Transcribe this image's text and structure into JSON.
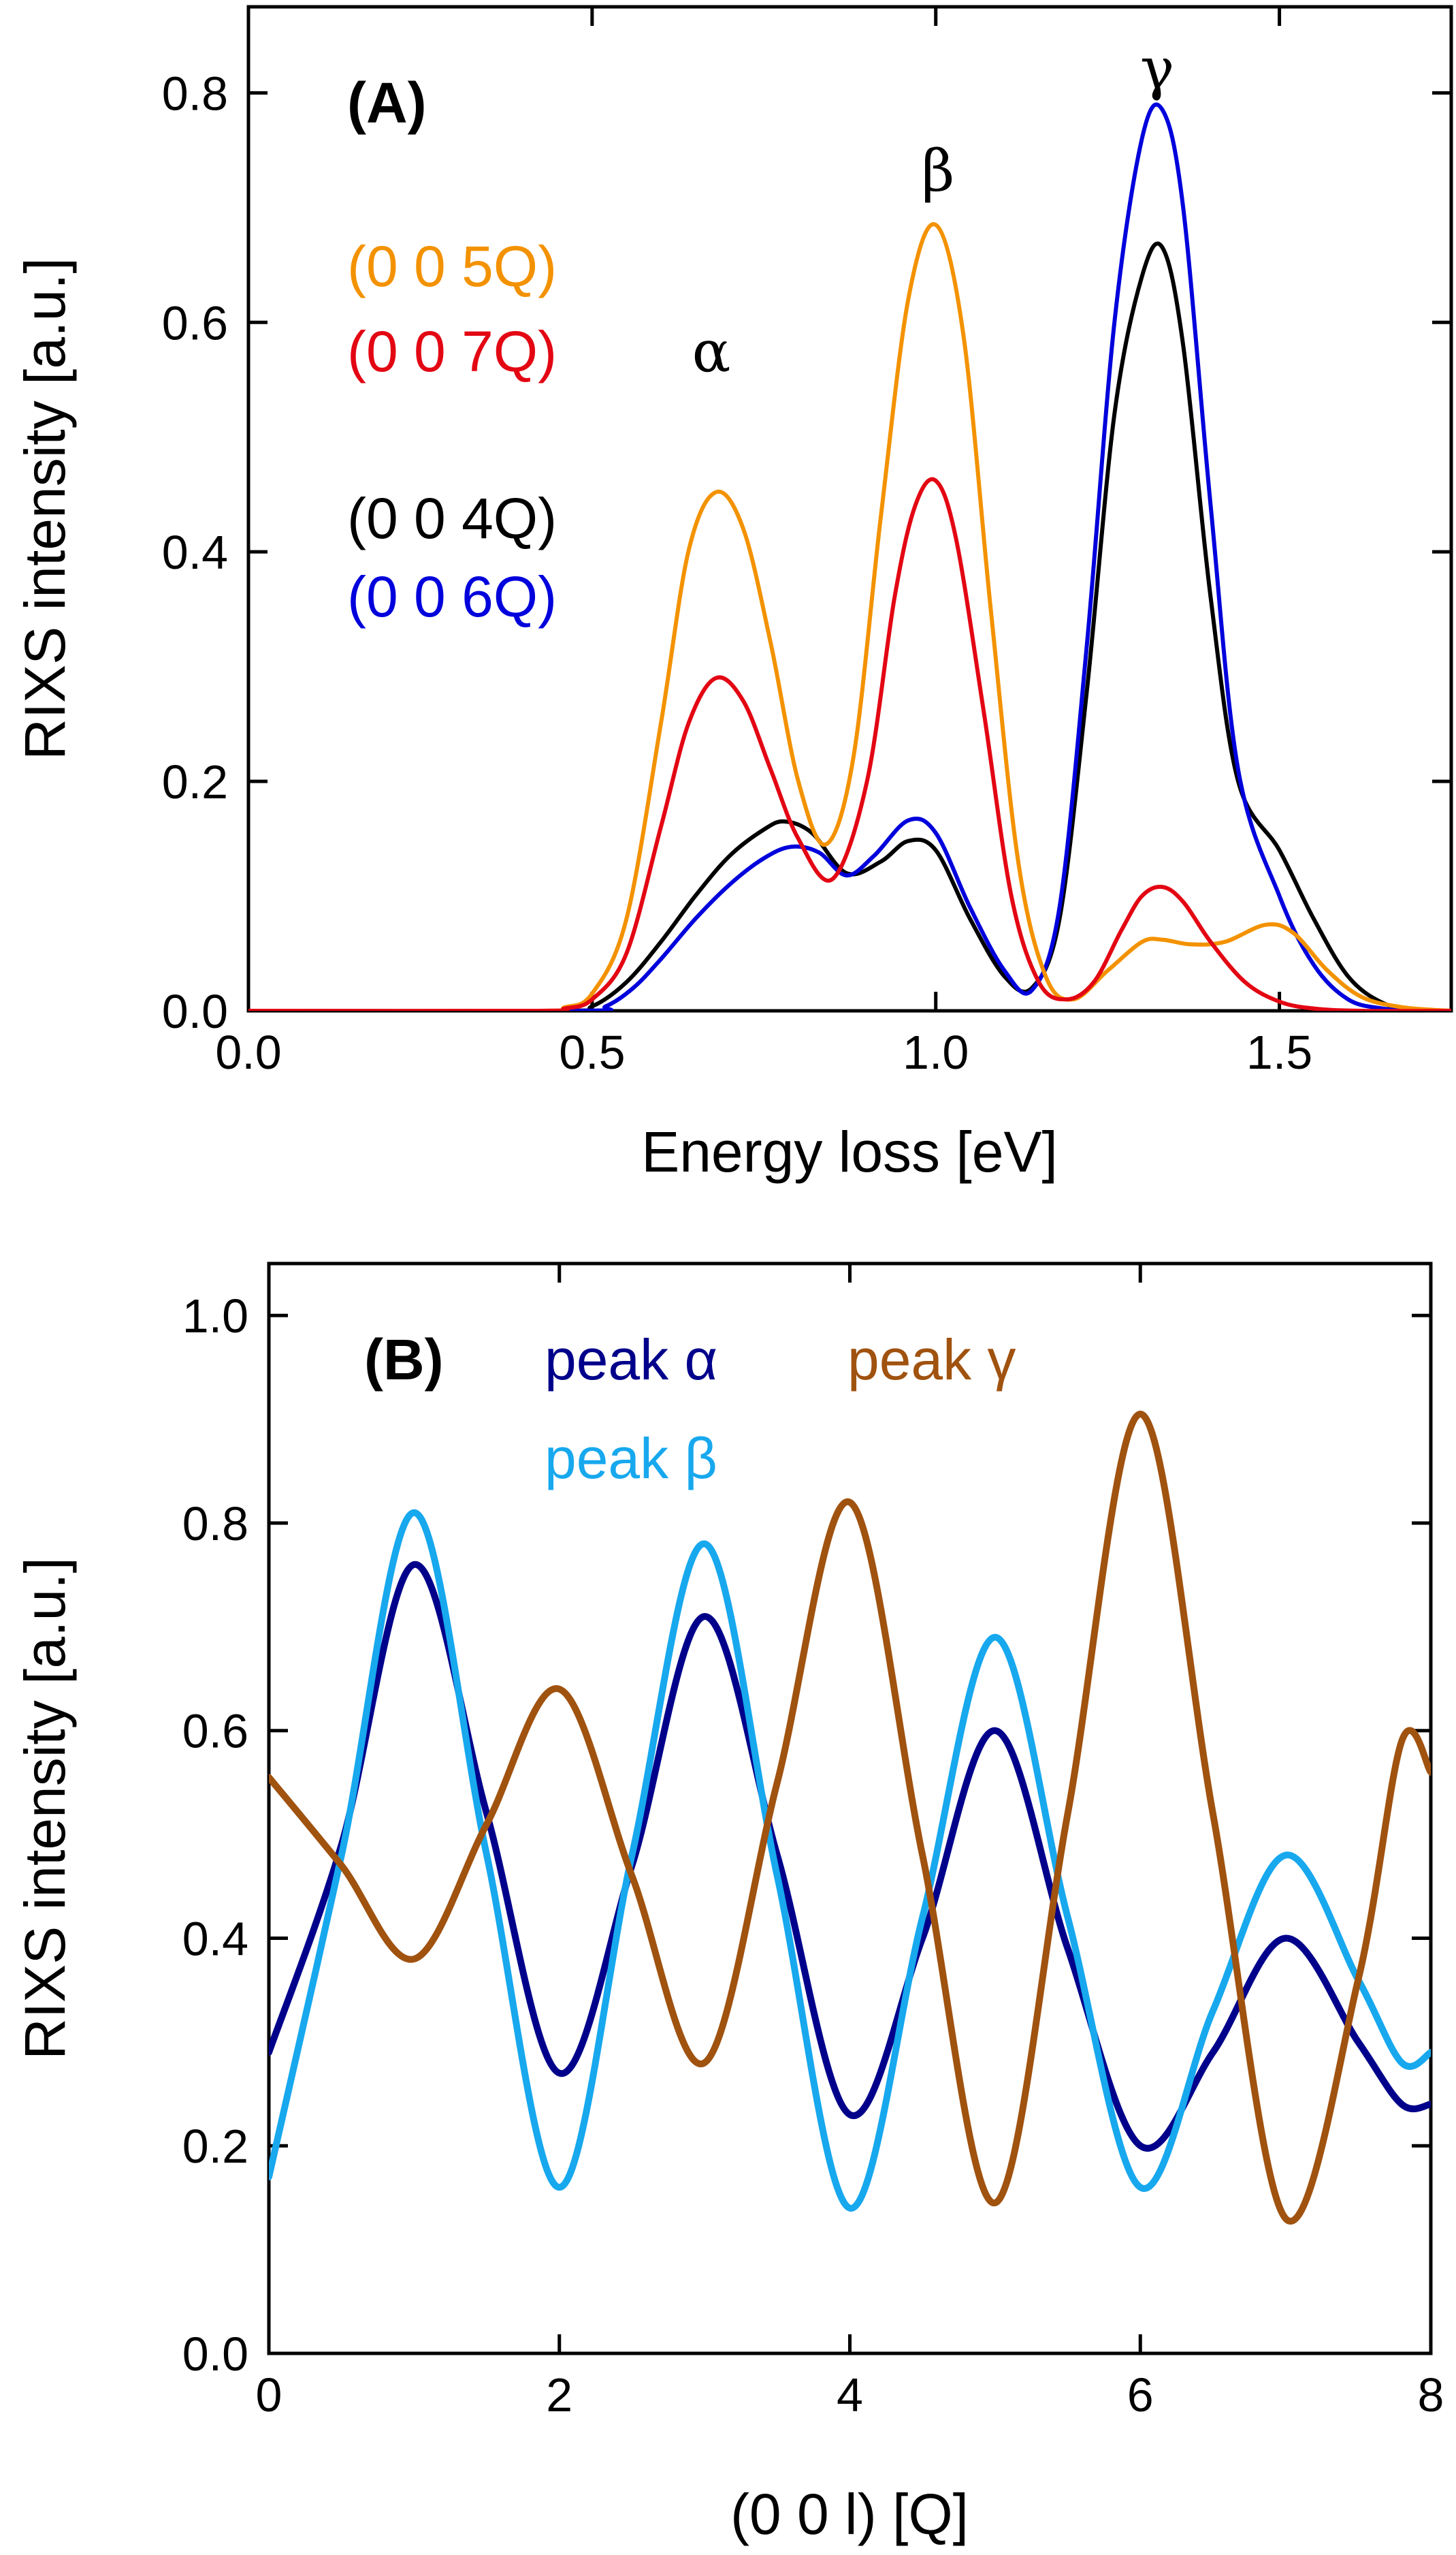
{
  "chart_data": [
    {
      "type": "line",
      "panel_label": "(A)",
      "xlabel": "Energy loss [eV]",
      "ylabel": "RIXS intensity [a.u.]",
      "xlim": [
        0.0,
        1.75
      ],
      "ylim": [
        0.0,
        0.875
      ],
      "xticks": [
        "0.0",
        "0.5",
        "1.0",
        "1.5"
      ],
      "xtick_values": [
        0.0,
        0.5,
        1.0,
        1.5
      ],
      "yticks": [
        "0.0",
        "0.2",
        "0.4",
        "0.6",
        "0.8"
      ],
      "ytick_values": [
        0.0,
        0.2,
        0.4,
        0.6,
        0.8
      ],
      "peak_labels": [
        {
          "text": "α",
          "x": 0.68,
          "y": 0.59
        },
        {
          "text": "β",
          "x": 1.0,
          "y": 0.74
        },
        {
          "text": "γ",
          "x": 1.33,
          "y": 0.84
        }
      ],
      "legend": [
        {
          "label": "(0 0 5Q)",
          "color": "#F39200"
        },
        {
          "label": "(0 0 7Q)",
          "color": "#E30613"
        },
        {
          "label": "(0 0 4Q)",
          "color": "#000000"
        },
        {
          "label": "(0 0 6Q)",
          "color": "#0000DC"
        }
      ],
      "series": [
        {
          "name": "(0 0 4Q)",
          "color": "#000000",
          "x": [
            0.0,
            0.45,
            0.5,
            0.55,
            0.6,
            0.65,
            0.7,
            0.75,
            0.78,
            0.82,
            0.87,
            0.92,
            0.96,
            1.0,
            1.05,
            1.1,
            1.14,
            1.18,
            1.22,
            1.26,
            1.3,
            1.33,
            1.36,
            1.4,
            1.44,
            1.5,
            1.55,
            1.6,
            1.65,
            1.7,
            1.75
          ],
          "y": [
            0.0,
            0.0,
            0.004,
            0.025,
            0.06,
            0.1,
            0.135,
            0.158,
            0.165,
            0.155,
            0.12,
            0.13,
            0.148,
            0.14,
            0.08,
            0.03,
            0.02,
            0.08,
            0.28,
            0.52,
            0.64,
            0.665,
            0.58,
            0.36,
            0.2,
            0.14,
            0.08,
            0.03,
            0.007,
            0.001,
            0.0
          ]
        },
        {
          "name": "(0 0 6Q)",
          "color": "#0000DC",
          "x": [
            0.0,
            0.48,
            0.52,
            0.56,
            0.6,
            0.65,
            0.7,
            0.75,
            0.79,
            0.83,
            0.87,
            0.91,
            0.96,
            1.0,
            1.05,
            1.1,
            1.14,
            1.18,
            1.22,
            1.26,
            1.3,
            1.33,
            1.36,
            1.4,
            1.44,
            1.5,
            1.55,
            1.6,
            1.65,
            1.7,
            1.75
          ],
          "y": [
            0.0,
            0.0,
            0.004,
            0.02,
            0.045,
            0.08,
            0.11,
            0.133,
            0.143,
            0.138,
            0.118,
            0.135,
            0.166,
            0.155,
            0.09,
            0.035,
            0.018,
            0.09,
            0.32,
            0.6,
            0.76,
            0.785,
            0.7,
            0.44,
            0.21,
            0.1,
            0.04,
            0.01,
            0.002,
            0.0,
            0.0
          ]
        },
        {
          "name": "(0 0 5Q)",
          "color": "#F39200",
          "x": [
            0.0,
            0.42,
            0.46,
            0.5,
            0.55,
            0.6,
            0.64,
            0.68,
            0.72,
            0.76,
            0.8,
            0.84,
            0.88,
            0.92,
            0.96,
            1.0,
            1.04,
            1.08,
            1.12,
            1.16,
            1.2,
            1.25,
            1.3,
            1.33,
            1.37,
            1.42,
            1.48,
            1.52,
            1.57,
            1.62,
            1.68,
            1.75
          ],
          "y": [
            0.0,
            0.0,
            0.003,
            0.015,
            0.08,
            0.25,
            0.4,
            0.452,
            0.42,
            0.32,
            0.2,
            0.145,
            0.22,
            0.43,
            0.62,
            0.685,
            0.59,
            0.35,
            0.13,
            0.03,
            0.01,
            0.035,
            0.06,
            0.062,
            0.058,
            0.06,
            0.075,
            0.068,
            0.035,
            0.012,
            0.003,
            0.0
          ]
        },
        {
          "name": "(0 0 7Q)",
          "color": "#E30613",
          "x": [
            0.0,
            0.42,
            0.46,
            0.5,
            0.55,
            0.6,
            0.64,
            0.68,
            0.72,
            0.76,
            0.8,
            0.85,
            0.9,
            0.94,
            0.97,
            1.0,
            1.03,
            1.07,
            1.11,
            1.15,
            1.19,
            1.23,
            1.27,
            1.3,
            1.33,
            1.36,
            1.4,
            1.45,
            1.5,
            1.55,
            1.62,
            1.75
          ],
          "y": [
            0.0,
            0.0,
            0.002,
            0.01,
            0.05,
            0.16,
            0.25,
            0.29,
            0.27,
            0.21,
            0.15,
            0.115,
            0.2,
            0.36,
            0.44,
            0.462,
            0.41,
            0.26,
            0.1,
            0.025,
            0.01,
            0.025,
            0.07,
            0.1,
            0.108,
            0.095,
            0.06,
            0.025,
            0.008,
            0.002,
            0.0,
            0.0
          ]
        }
      ]
    },
    {
      "type": "line",
      "panel_label": "(B)",
      "xlabel": "(0 0 l) [Q]",
      "ylabel": "RIXS intensity [a.u.]",
      "xlim": [
        0,
        8
      ],
      "ylim": [
        0.0,
        1.05
      ],
      "xticks": [
        "0",
        "2",
        "4",
        "6",
        "8"
      ],
      "xtick_values": [
        0,
        2,
        4,
        6,
        8
      ],
      "yticks": [
        "0.0",
        "0.2",
        "0.4",
        "0.6",
        "0.8",
        "1.0"
      ],
      "ytick_values": [
        0.0,
        0.2,
        0.4,
        0.6,
        0.8,
        1.0
      ],
      "legend": [
        {
          "label": "peak α",
          "color": "#00008B"
        },
        {
          "label": "peak β",
          "color": "#17A8EE"
        },
        {
          "label": "peak γ",
          "color": "#A0520F"
        }
      ],
      "series": [
        {
          "name": "peak α",
          "color": "#00008B",
          "x": [
            0,
            0.5,
            1,
            1.5,
            2,
            2.5,
            3,
            3.5,
            4,
            4.5,
            5,
            5.5,
            6,
            6.5,
            7,
            7.5,
            7.8,
            8
          ],
          "y": [
            0.29,
            0.49,
            0.76,
            0.52,
            0.27,
            0.47,
            0.71,
            0.48,
            0.23,
            0.4,
            0.6,
            0.39,
            0.2,
            0.29,
            0.4,
            0.3,
            0.24,
            0.24
          ]
        },
        {
          "name": "peak β",
          "color": "#17A8EE",
          "x": [
            0,
            0.5,
            1,
            1.5,
            2,
            2.5,
            3,
            3.5,
            4,
            4.5,
            5,
            5.5,
            6,
            6.5,
            7,
            7.5,
            7.8,
            8
          ],
          "y": [
            0.17,
            0.48,
            0.81,
            0.48,
            0.16,
            0.48,
            0.78,
            0.46,
            0.14,
            0.42,
            0.69,
            0.42,
            0.16,
            0.33,
            0.48,
            0.36,
            0.28,
            0.29
          ]
        },
        {
          "name": "peak γ",
          "color": "#A0520F",
          "x": [
            0,
            0.5,
            1,
            1.5,
            2,
            2.5,
            3,
            3.5,
            4,
            4.5,
            5,
            5.5,
            6,
            6.5,
            7,
            7.5,
            7.8,
            8
          ],
          "y": [
            0.555,
            0.47,
            0.38,
            0.51,
            0.64,
            0.46,
            0.28,
            0.55,
            0.82,
            0.48,
            0.145,
            0.52,
            0.905,
            0.52,
            0.13,
            0.36,
            0.59,
            0.56
          ]
        }
      ]
    }
  ]
}
